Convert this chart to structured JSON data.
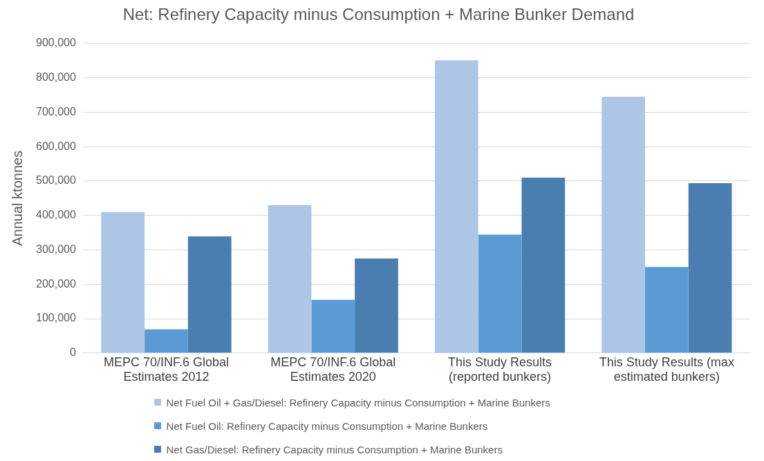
{
  "chart_data": {
    "type": "bar",
    "title": "Net: Refinery Capacity minus Consumption + Marine Bunker Demand",
    "ylabel": "Annual ktonnes",
    "categories": [
      "MEPC 70/INF.6 Global Estimates 2012",
      "MEPC 70/INF.6 Global Estimates 2020",
      "This Study Results (reported bunkers)",
      "This Study Results (max estimated bunkers)"
    ],
    "series": [
      {
        "name": "Net Fuel Oil + Gas/Diesel: Refinery Capacity minus Consumption + Marine Bunkers",
        "color": "#adc6e6",
        "values": [
          410000,
          430000,
          851000,
          745000
        ]
      },
      {
        "name": "Net Fuel Oil: Refinery Capacity minus Consumption + Marine Bunkers",
        "color": "#5b9bd5",
        "values": [
          69000,
          155000,
          344000,
          250000
        ]
      },
      {
        "name": "Net Gas/Diesel: Refinery Capacity minus Consumption + Marine Bunkers",
        "color": "#4a7eb0",
        "values": [
          339000,
          275000,
          510000,
          494000
        ]
      }
    ],
    "ylim": [
      0,
      900000
    ],
    "yticks": [
      0,
      {
        "value": 100000,
        "label": "100,000"
      },
      {
        "value": 200000,
        "label": "200,000"
      },
      {
        "value": 300000,
        "label": "300,000"
      },
      {
        "value": 400000,
        "label": "400,000"
      },
      {
        "value": 500000,
        "label": "500,000"
      },
      {
        "value": 600000,
        "label": "600,000"
      },
      {
        "value": 700000,
        "label": "700,000"
      },
      {
        "value": 800000,
        "label": "800,000"
      },
      {
        "value": 900000,
        "label": "900,000"
      }
    ],
    "grid": "y",
    "legend": "bottom"
  }
}
